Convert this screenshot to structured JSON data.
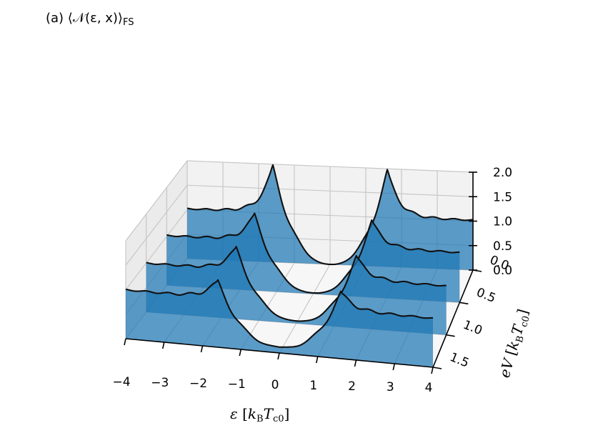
{
  "chart_data": {
    "type": "area",
    "subtype": "3d-waterfall",
    "panel_label": "(a)",
    "title": "⟨𝒩(ε, x)⟩FS",
    "title_main": "(a) ⟨𝒩(ε, x)⟩",
    "title_sub": "FS",
    "xlabel": "ε [kBTc0]",
    "xlabel_parts": {
      "sym": "ε",
      "open": " [",
      "k": "k",
      "ksub": "B",
      "t": "T",
      "tsub": "c0",
      "close": "]"
    },
    "ylabel": "eV [kBTc0]",
    "ylabel_parts": {
      "sym": "eV",
      "open": " [",
      "k": "k",
      "ksub": "B",
      "t": "T",
      "tsub": "c0",
      "close": "]"
    },
    "xticks": [
      "−4",
      "−3",
      "−2",
      "−1",
      "0",
      "1",
      "2",
      "3",
      "4"
    ],
    "yticks": [
      "0.0",
      "0.5",
      "1.0",
      "1.5"
    ],
    "zticks": [
      "0.0",
      "0.5",
      "1.0",
      "1.5",
      "2.0"
    ],
    "xlim": [
      -4,
      4
    ],
    "ylim": [
      0,
      1.5
    ],
    "zlim": [
      0,
      2
    ],
    "grid": true,
    "series_color": "#1f77b4",
    "series": [
      {
        "eV": 0.0,
        "gap_edge": 1.62,
        "peak_height": 1.95,
        "outer_value": 1.02,
        "x": [
          -4,
          -3,
          -2,
          -1.62,
          -1,
          0,
          1,
          1.62,
          2,
          3,
          4
        ],
        "y": [
          1.02,
          1.06,
          1.25,
          1.95,
          0.78,
          0.0,
          0.78,
          1.95,
          1.25,
          1.06,
          1.02
        ]
      },
      {
        "eV": 0.5,
        "gap_edge": 1.62,
        "peak_height": 1.55,
        "outer_value": 1.02,
        "x": [
          -4,
          -3,
          -2,
          -1.62,
          -1,
          0,
          1,
          1.62,
          2,
          3,
          4
        ],
        "y": [
          1.02,
          1.05,
          1.2,
          1.55,
          0.7,
          0.02,
          0.7,
          1.55,
          1.2,
          1.05,
          1.02
        ]
      },
      {
        "eV": 1.0,
        "gap_edge": 1.62,
        "peak_height": 1.45,
        "outer_value": 1.0,
        "x": [
          -4,
          -3,
          -2,
          -1.62,
          -1,
          0,
          1,
          1.62,
          2,
          3,
          4
        ],
        "y": [
          1.0,
          1.05,
          1.2,
          1.45,
          0.72,
          0.05,
          0.72,
          1.45,
          1.2,
          1.05,
          1.0
        ]
      },
      {
        "eV": 1.5,
        "gap_edge": 1.62,
        "peak_height": 1.35,
        "outer_value": 1.0,
        "x": [
          -4,
          -3,
          -2,
          -1.62,
          -1,
          0,
          1,
          1.62,
          2,
          3,
          4
        ],
        "y": [
          1.0,
          1.05,
          1.15,
          1.35,
          0.7,
          0.12,
          0.7,
          1.35,
          1.15,
          1.05,
          1.0
        ]
      }
    ]
  }
}
